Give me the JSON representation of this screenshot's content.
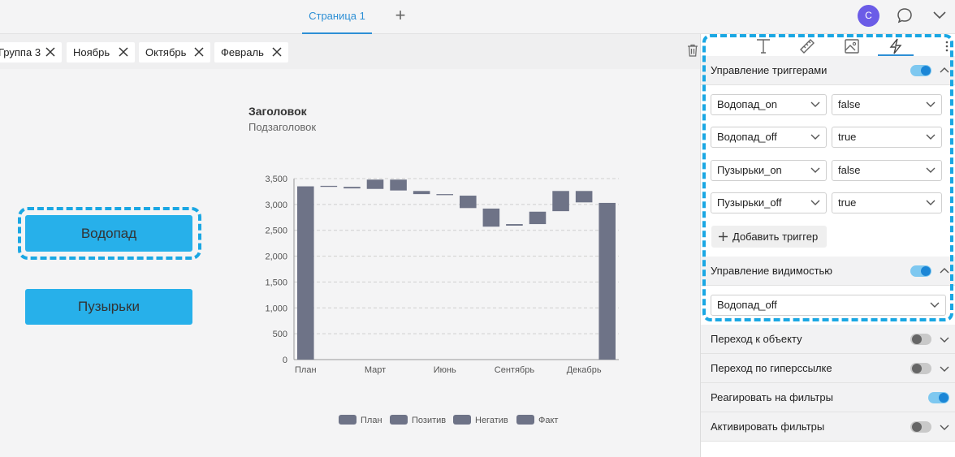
{
  "header": {
    "page_tab": "Страница 1",
    "add_tab": "+",
    "avatar_letter": "С"
  },
  "filters": [
    {
      "label": "Группа 3"
    },
    {
      "label": "Ноябрь"
    },
    {
      "label": "Октябрь"
    },
    {
      "label": "Февраль"
    }
  ],
  "canvas": {
    "button_waterfall": "Водопад",
    "button_bubbles": "Пузырьки",
    "chart_title": "Заголовок",
    "chart_subtitle": "Подзаголовок"
  },
  "chart_data": {
    "type": "bar",
    "subtype": "waterfall",
    "title": "Заголовок",
    "subtitle": "Подзаголовок",
    "categories": [
      "План",
      "",
      "",
      "Март",
      "",
      "",
      "Июнь",
      "",
      "",
      "Сентябрь",
      "",
      "",
      "Декабрь",
      ""
    ],
    "x_tick_labels": [
      "План",
      "Март",
      "Июнь",
      "Сентябрь",
      "Декабрь"
    ],
    "bars": [
      {
        "low": 0,
        "high": 3350
      },
      {
        "low": 3340,
        "high": 3360
      },
      {
        "low": 3310,
        "high": 3340
      },
      {
        "low": 3300,
        "high": 3480
      },
      {
        "low": 3270,
        "high": 3480
      },
      {
        "low": 3200,
        "high": 3260
      },
      {
        "low": 3180,
        "high": 3200
      },
      {
        "low": 2930,
        "high": 3170
      },
      {
        "low": 2570,
        "high": 2920
      },
      {
        "low": 2590,
        "high": 2620
      },
      {
        "low": 2620,
        "high": 2860
      },
      {
        "low": 2870,
        "high": 3260
      },
      {
        "low": 3040,
        "high": 3260
      },
      {
        "low": 0,
        "high": 3030
      }
    ],
    "ylim": [
      0,
      3500
    ],
    "yticks": [
      0,
      500,
      1000,
      1500,
      2000,
      2500,
      3000,
      3500
    ],
    "ytick_labels": [
      "0",
      "500",
      "1,000",
      "1,500",
      "2,000",
      "2,500",
      "3,000",
      "3,500"
    ],
    "grid": true,
    "legend": [
      "План",
      "Позитив",
      "Негатив",
      "Факт"
    ],
    "legend_position": "bottom",
    "color": "#6e7387"
  },
  "panel": {
    "triggers_title": "Управление триггерами",
    "triggers": [
      {
        "name": "Водопад_on",
        "value": "false"
      },
      {
        "name": "Водопад_off",
        "value": "true"
      },
      {
        "name": "Пузырьки_on",
        "value": "false"
      },
      {
        "name": "Пузырьки_off",
        "value": "true"
      }
    ],
    "add_trigger": "Добавить триггер",
    "visibility_title": "Управление видимостью",
    "visibility_value": "Водопад_off",
    "goto_object": "Переход к объекту",
    "goto_link": "Переход по гиперссылке",
    "react_filters": "Реагировать на фильтры",
    "activate_filters": "Активировать фильтры"
  }
}
